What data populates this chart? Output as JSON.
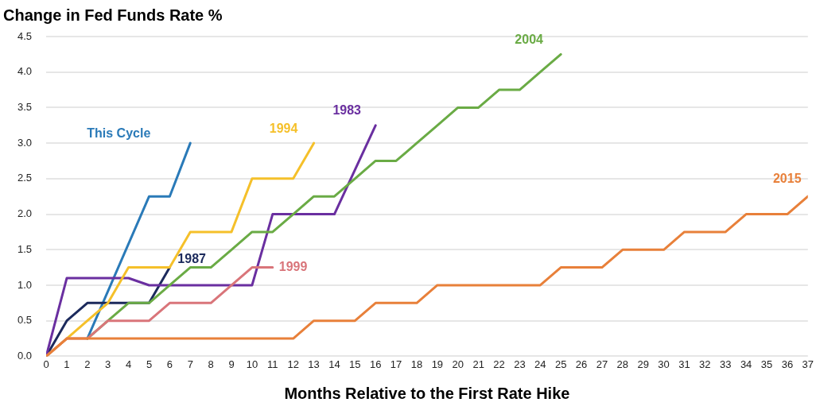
{
  "chart_data": {
    "type": "line",
    "title": "Change in Fed Funds Rate %",
    "xlabel": "Months Relative to the First Rate Hike",
    "xlim": [
      0,
      37
    ],
    "xticks": [
      0,
      1,
      2,
      3,
      4,
      5,
      6,
      7,
      8,
      9,
      10,
      11,
      12,
      13,
      14,
      15,
      16,
      17,
      18,
      19,
      20,
      21,
      22,
      23,
      24,
      25,
      26,
      27,
      28,
      29,
      30,
      31,
      32,
      33,
      34,
      35,
      36,
      37
    ],
    "ylim": [
      0,
      4.5
    ],
    "yticks": [
      {
        "value": 0,
        "label": "0.0"
      },
      {
        "value": 0.5,
        "label": "0.5"
      },
      {
        "value": 1,
        "label": "1.0"
      },
      {
        "value": 1.5,
        "label": "1.5"
      },
      {
        "value": 2,
        "label": "2.0"
      },
      {
        "value": 2.5,
        "label": "2.5"
      },
      {
        "value": 3,
        "label": "3.0"
      },
      {
        "value": 3.5,
        "label": "3.5"
      },
      {
        "value": 4,
        "label": "4.0"
      },
      {
        "value": 4.5,
        "label": "4.5"
      }
    ],
    "grid": "y",
    "legend": false,
    "marker": "none",
    "line_style": "solid",
    "series": [
      {
        "name": "2015",
        "color": "#e8803a",
        "x": [
          0,
          1,
          12,
          13,
          15,
          16,
          18,
          19,
          24,
          25,
          27,
          28,
          30,
          31,
          33,
          34,
          36,
          37
        ],
        "values": [
          0,
          0.25,
          0.25,
          0.5,
          0.5,
          0.75,
          0.75,
          1.0,
          1.0,
          1.25,
          1.25,
          1.5,
          1.5,
          1.75,
          1.75,
          2.0,
          2.0,
          2.25
        ]
      },
      {
        "name": "1999",
        "color": "#d9757a",
        "x": [
          0,
          1,
          2,
          3,
          5,
          6,
          8,
          10,
          11
        ],
        "values": [
          0,
          0.25,
          0.25,
          0.5,
          0.5,
          0.75,
          0.75,
          1.25,
          1.25
        ]
      },
      {
        "name": "2004",
        "color": "#6aab45",
        "x": [
          2,
          3,
          4,
          5,
          6,
          7,
          8,
          9,
          10,
          11,
          12,
          13,
          14,
          15,
          16,
          17,
          18,
          19,
          20,
          21,
          22,
          23,
          24,
          25
        ],
        "values": [
          0.25,
          0.5,
          0.75,
          0.75,
          1.0,
          1.25,
          1.25,
          1.5,
          1.75,
          1.75,
          2.0,
          2.25,
          2.25,
          2.5,
          2.75,
          2.75,
          3.0,
          3.25,
          3.5,
          3.5,
          3.75,
          3.75,
          4.0,
          4.25
        ]
      },
      {
        "name": "1994",
        "color": "#f5c02a",
        "x": [
          0,
          1,
          2,
          3,
          4,
          5,
          6,
          7,
          8,
          9,
          10,
          11,
          12,
          13
        ],
        "values": [
          0,
          0.25,
          0.5,
          0.75,
          1.25,
          1.25,
          1.25,
          1.75,
          1.75,
          1.75,
          2.5,
          2.5,
          2.5,
          3.0
        ]
      },
      {
        "name": "1983",
        "color": "#6a2fa0",
        "x": [
          0,
          1,
          4,
          5,
          10,
          11,
          14,
          16
        ],
        "values": [
          0,
          1.1,
          1.1,
          1.0,
          1.0,
          2.0,
          2.0,
          3.25
        ]
      },
      {
        "name": "1987",
        "color": "#1c2a5c",
        "x": [
          0,
          1,
          2,
          5,
          6
        ],
        "values": [
          0,
          0.5,
          0.75,
          0.75,
          1.25
        ]
      },
      {
        "name": "This Cycle",
        "color": "#2a7ab8",
        "x": [
          2,
          5,
          6,
          7
        ],
        "values": [
          0.25,
          2.25,
          2.25,
          3.0
        ]
      }
    ]
  }
}
